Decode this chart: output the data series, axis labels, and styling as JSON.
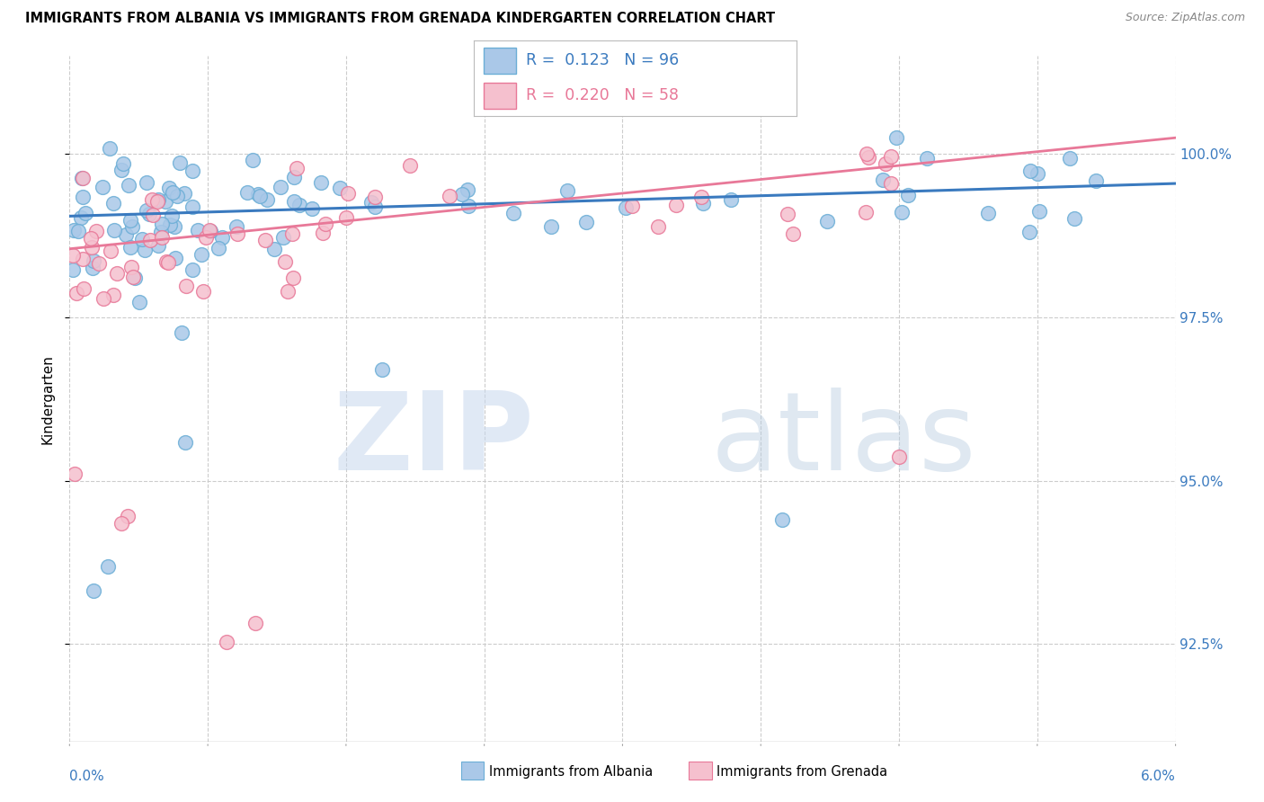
{
  "title": "IMMIGRANTS FROM ALBANIA VS IMMIGRANTS FROM GRENADA KINDERGARTEN CORRELATION CHART",
  "source": "Source: ZipAtlas.com",
  "ylabel": "Kindergarten",
  "ytick_labels": [
    "92.5%",
    "95.0%",
    "97.5%",
    "100.0%"
  ],
  "ytick_values": [
    92.5,
    95.0,
    97.5,
    100.0
  ],
  "xlim": [
    0.0,
    6.0
  ],
  "ylim": [
    91.0,
    101.5
  ],
  "albania_color_face": "#aac8e8",
  "albania_color_edge": "#6baed6",
  "grenada_color_face": "#f5c0ce",
  "grenada_color_edge": "#e87898",
  "albania_line_color": "#3a7abf",
  "grenada_line_color": "#e87898",
  "watermark_zip": "ZIP",
  "watermark_atlas": "atlas",
  "albania_trend_y0": 99.05,
  "albania_trend_y1": 99.55,
  "grenada_trend_y0": 98.55,
  "grenada_trend_y1": 100.25
}
